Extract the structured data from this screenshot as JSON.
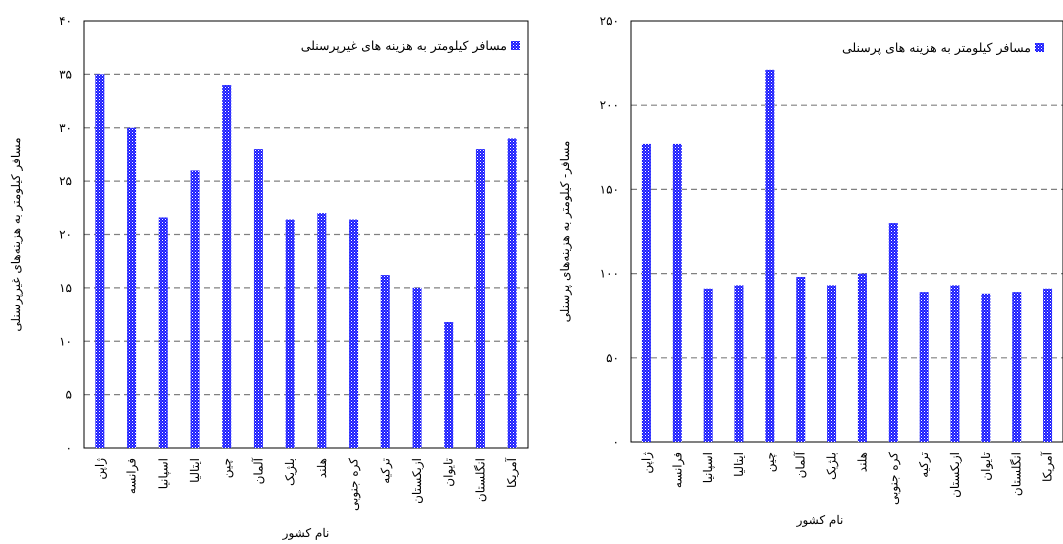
{
  "chart_data": [
    {
      "type": "bar",
      "title": "",
      "xlabel": "نام کشور",
      "ylabel": "مسافر کیلومتر به هزینه‌های غیرپرسنلی",
      "ylim": [
        0,
        40
      ],
      "yticks": [
        0,
        5,
        10,
        15,
        20,
        25,
        30,
        35,
        40
      ],
      "ytick_labels": [
        "۰",
        "۵",
        "۱۰",
        "۱۵",
        "۲۰",
        "۲۵",
        "۳۰",
        "۳۵",
        "۴۰"
      ],
      "grid": true,
      "legend_position": "top-right",
      "categories": [
        "ژاپن",
        "فرانسه",
        "اسپانیا",
        "ایتالیا",
        "چین",
        "آلمان",
        "بلژیک",
        "هلند",
        "کره جنوبی",
        "ترکیه",
        "ازبکستان",
        "تایوان",
        "انگلستان",
        "آمریکا"
      ],
      "series": [
        {
          "name": "مسافر کیلومتر به هزینه های غیرپرسنلی",
          "color": "#1a1aff",
          "values": [
            35.0,
            30.0,
            21.6,
            26.0,
            34.0,
            28.0,
            21.4,
            22.0,
            21.4,
            16.2,
            15.0,
            11.8,
            28.0,
            29.0
          ]
        }
      ]
    },
    {
      "type": "bar",
      "title": "",
      "xlabel": "نام کشور",
      "ylabel": "مسافر- کیلومتر به هزینه‌های پرسنلی",
      "ylim": [
        0,
        250
      ],
      "yticks": [
        0,
        50,
        100,
        150,
        200,
        250
      ],
      "ytick_labels": [
        "۰",
        "۵۰",
        "۱۰۰",
        "۱۵۰",
        "۲۰۰",
        "۲۵۰"
      ],
      "grid": true,
      "legend_position": "top-right",
      "categories": [
        "ژاپن",
        "فرانسه",
        "اسپانیا",
        "ایتالیا",
        "چین",
        "آلمان",
        "بلژیک",
        "هلند",
        "کره جنوبی",
        "ترکیه",
        "ازبکستان",
        "تایوان",
        "انگلستان",
        "آمریکا"
      ],
      "series": [
        {
          "name": "مسافر کیلومتر به هزینه های پرسنلی",
          "color": "#1a1aff",
          "values": [
            177,
            177,
            91,
            93,
            221,
            98,
            93,
            100,
            130,
            89,
            93,
            88,
            89,
            91
          ]
        }
      ]
    }
  ]
}
